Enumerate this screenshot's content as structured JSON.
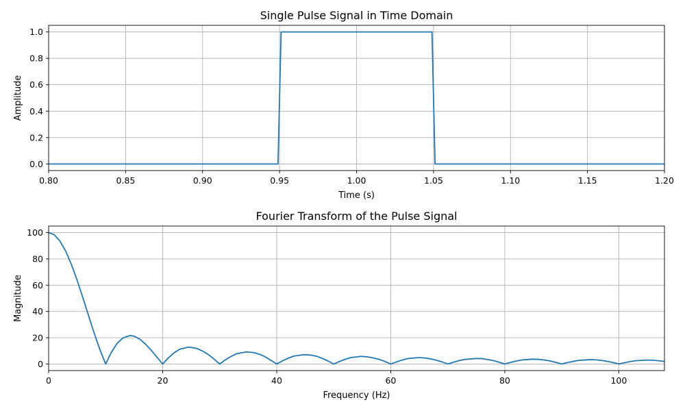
{
  "chart_data": [
    {
      "type": "line",
      "title": "Single Pulse Signal in Time Domain",
      "xlabel": "Time (s)",
      "ylabel": "Amplitude",
      "xlim": [
        0.8,
        1.2
      ],
      "ylim": [
        -0.05,
        1.05
      ],
      "xticks": [
        "0.80",
        "0.85",
        "0.90",
        "0.95",
        "1.00",
        "1.05",
        "1.10",
        "1.15",
        "1.20"
      ],
      "yticks": [
        "0.0",
        "0.2",
        "0.4",
        "0.6",
        "0.8",
        "1.0"
      ],
      "grid": true,
      "color": "#1f77b4",
      "series": [
        {
          "x": [
            0.8,
            0.949,
            0.951,
            1.049,
            1.051,
            1.2
          ],
          "values": [
            0,
            0,
            1,
            1,
            0,
            0
          ]
        }
      ]
    },
    {
      "type": "line",
      "title": "Fourier Transform of the Pulse Signal",
      "xlabel": "Frequency (Hz)",
      "ylabel": "Magnitude",
      "xlim": [
        0,
        108
      ],
      "ylim": [
        -5,
        105
      ],
      "xticks": [
        "0",
        "20",
        "40",
        "60",
        "80",
        "100"
      ],
      "yticks": [
        "0",
        "20",
        "40",
        "60",
        "80",
        "100"
      ],
      "grid": true,
      "color": "#1f77b4",
      "series": [
        {
          "x": [
            0,
            1,
            2,
            3,
            4,
            5,
            6,
            7,
            8,
            9,
            10,
            11,
            12,
            13,
            14.3,
            15,
            16,
            17,
            18,
            19,
            20,
            21,
            22,
            23,
            24.6,
            26,
            27,
            28,
            29,
            30,
            31,
            32,
            33,
            34.7,
            36,
            37,
            38,
            39,
            40,
            41,
            42,
            43,
            44.8,
            46,
            47,
            48,
            49,
            50,
            51,
            52,
            53,
            54.8,
            56,
            57,
            58,
            59,
            60,
            61,
            62,
            63,
            64.9,
            66,
            67,
            68,
            69,
            70,
            71,
            72,
            73,
            74.9,
            76,
            77,
            78,
            79,
            80,
            81,
            82,
            83,
            84.9,
            86,
            87,
            88,
            89,
            90,
            91,
            92,
            93,
            94.9,
            96,
            97,
            98,
            99,
            100,
            101,
            102,
            103,
            104.9,
            106,
            107,
            108
          ],
          "values": [
            100,
            98.4,
            93.5,
            85.8,
            75.7,
            63.7,
            50.5,
            36.8,
            23.4,
            10.9,
            0,
            8.9,
            15.6,
            19.8,
            21.7,
            21.2,
            18.9,
            15.1,
            10.4,
            5.2,
            0,
            4.7,
            8.5,
            11.3,
            12.9,
            11.8,
            9.9,
            7.2,
            3.8,
            0,
            3.2,
            5.8,
            7.9,
            9.2,
            8.7,
            7.4,
            5.4,
            2.8,
            0,
            2.4,
            4.4,
            6.0,
            7.1,
            6.8,
            5.9,
            4.3,
            2.3,
            0,
            1.9,
            3.6,
            4.9,
            5.8,
            5.4,
            4.5,
            3.5,
            1.9,
            0,
            1.6,
            3.0,
            4.1,
            4.9,
            4.6,
            3.9,
            2.9,
            1.6,
            0,
            1.4,
            2.6,
            3.5,
            4.2,
            4.1,
            3.4,
            2.6,
            1.4,
            0,
            1.2,
            2.3,
            3.1,
            3.7,
            3.5,
            3.0,
            2.3,
            1.2,
            0,
            1.1,
            2.0,
            2.8,
            3.3,
            3.2,
            2.7,
            2.0,
            1.1,
            0,
            1.0,
            1.9,
            2.5,
            3.0,
            2.9,
            2.5,
            1.9
          ]
        }
      ]
    }
  ]
}
